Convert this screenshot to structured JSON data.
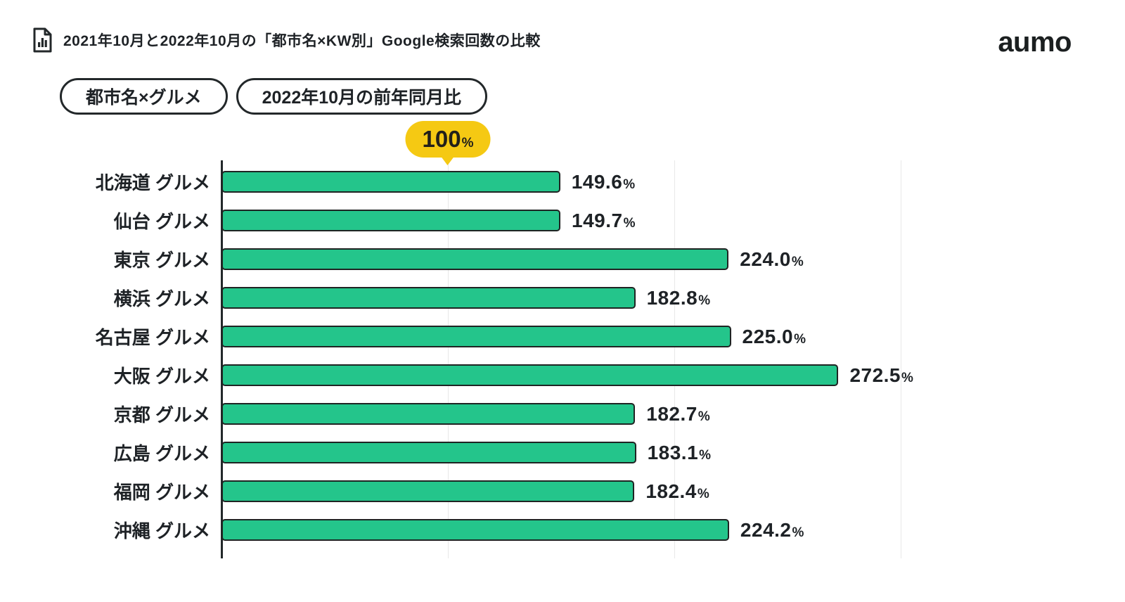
{
  "header": {
    "title": "2021年10月と2022年10月の「都市名×KW別」Google検索回数の比較",
    "title_icon": "bar-chart-document-icon",
    "logo": "aumo"
  },
  "filters": {
    "keyword_badge": "都市名×グルメ",
    "comparison_badge": "2022年10月の前年同月比"
  },
  "baseline_marker": {
    "value": "100",
    "unit": "%"
  },
  "chart_data": {
    "type": "bar",
    "orientation": "horizontal",
    "title": "2021年10月と2022年10月の「都市名×KW別」Google検索回数の比較",
    "categories": [
      "北海道 グルメ",
      "仙台 グルメ",
      "東京 グルメ",
      "横浜 グルメ",
      "名古屋 グルメ",
      "大阪 グルメ",
      "京都 グルメ",
      "広島 グルメ",
      "福岡 グルメ",
      "沖縄 グルメ"
    ],
    "values": [
      149.6,
      149.7,
      224.0,
      182.8,
      225.0,
      272.5,
      182.7,
      183.1,
      182.4,
      224.2
    ],
    "unit": "%",
    "value_decimals": 1,
    "baseline": 100,
    "xlim": [
      0,
      300
    ],
    "gridlines": [
      0,
      100,
      200,
      300
    ],
    "grid": true,
    "legend": false
  },
  "colors": {
    "bar_fill": "#24c58b",
    "bar_stroke": "#1f2423",
    "badge_yellow": "#f5c913",
    "ink": "#1e2226",
    "gridline": "#e8e8e8"
  }
}
